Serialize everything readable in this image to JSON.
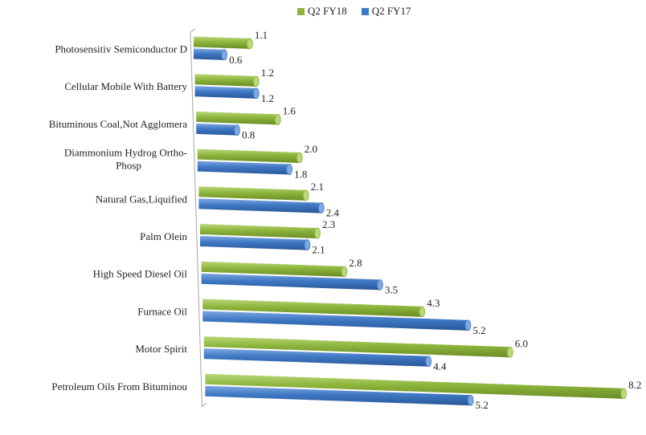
{
  "chart_data": {
    "type": "bar",
    "orientation": "horizontal",
    "style": "3d-cylinder",
    "categories": [
      "Photosensitiv Semiconductor D",
      "Cellular Mobile With Battery",
      "Bituminous Coal,Not Agglomera",
      "Diammonium Hydrog Ortho-Phosp",
      "Natural Gas,Liquified",
      "Palm Olein",
      "High Speed Diesel Oil",
      "Furnace Oil",
      "Motor Spirit",
      "Petroleum Oils From Bituminou"
    ],
    "category_label_lines": [
      [
        "Photosensitiv Semiconductor D"
      ],
      [
        "Cellular Mobile With Battery"
      ],
      [
        "Bituminous Coal,Not Agglomera"
      ],
      [
        "Diammonium Hydrog Ortho-",
        "Phosp"
      ],
      [
        "Natural Gas,Liquified"
      ],
      [
        "Palm Olein"
      ],
      [
        "High Speed Diesel Oil"
      ],
      [
        "Furnace Oil"
      ],
      [
        "Motor Spirit"
      ],
      [
        "Petroleum Oils From Bituminou"
      ]
    ],
    "series": [
      {
        "name": "Q2 FY18",
        "color": "#8db53c",
        "values": [
          1.1,
          1.2,
          1.6,
          2.0,
          2.1,
          2.3,
          2.8,
          4.3,
          6.0,
          8.2
        ],
        "value_labels": [
          "1.1",
          "1.2",
          "1.6",
          "2.0",
          "2.1",
          "2.3",
          "2.8",
          "4.3",
          "6.0",
          "8.2"
        ]
      },
      {
        "name": "Q2 FY17",
        "color": "#3f78c4",
        "values": [
          0.6,
          1.2,
          0.8,
          1.8,
          2.4,
          2.1,
          3.5,
          5.2,
          4.4,
          5.2
        ],
        "value_labels": [
          "0.6",
          "1.2",
          "0.8",
          "1.8",
          "2.4",
          "2.1",
          "3.5",
          "5.2",
          "4.4",
          "5.2"
        ]
      }
    ],
    "legend_position": "top",
    "grid": false,
    "xlim": [
      0,
      9
    ]
  }
}
